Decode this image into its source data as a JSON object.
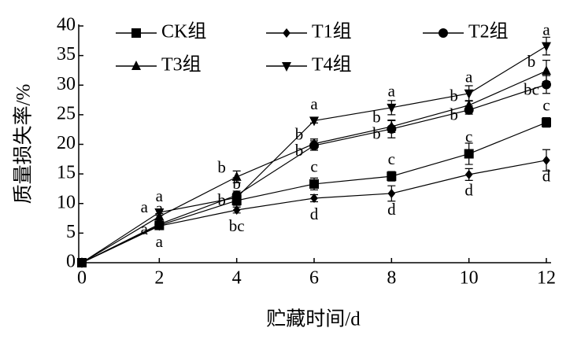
{
  "chart_data": {
    "type": "line",
    "x_label": "贮藏时间/d",
    "y_label": "质量损失率/%",
    "x": [
      0,
      2,
      4,
      6,
      8,
      10,
      12
    ],
    "xlim": [
      0,
      12
    ],
    "xticks": [
      0,
      2,
      4,
      6,
      8,
      10,
      12
    ],
    "ylim": [
      0,
      40
    ],
    "yticks": [
      0,
      5,
      10,
      15,
      20,
      25,
      30,
      35,
      40
    ],
    "color": "#000000",
    "series": [
      {
        "name": "CK组",
        "marker": "square",
        "values": [
          0,
          6.3,
          10.5,
          13.3,
          14.6,
          18.4,
          23.7
        ],
        "errors": [
          0,
          0.5,
          0.8,
          1.0,
          0.8,
          1.8,
          0.8
        ],
        "labels": [
          null,
          "a",
          "b",
          "c",
          "c",
          "c",
          "c"
        ]
      },
      {
        "name": "T1组",
        "marker": "diamond",
        "values": [
          0,
          6.2,
          8.9,
          10.9,
          11.7,
          14.9,
          17.3
        ],
        "errors": [
          0,
          0.4,
          0.5,
          0.6,
          1.3,
          1.0,
          1.8
        ],
        "labels": [
          null,
          "a",
          "bc",
          "d",
          "d",
          "d",
          "d"
        ]
      },
      {
        "name": "T2组",
        "marker": "circle",
        "values": [
          0,
          6.5,
          11.4,
          19.8,
          22.6,
          25.8,
          30.1
        ],
        "errors": [
          0,
          0.5,
          0.7,
          0.8,
          1.5,
          0.7,
          1.5
        ],
        "labels": [
          null,
          "a",
          "b",
          "b",
          "b",
          "b",
          "bc"
        ]
      },
      {
        "name": "T3组",
        "marker": "triangle-up",
        "values": [
          0,
          7.8,
          14.5,
          20.1,
          23.0,
          26.6,
          32.4
        ],
        "errors": [
          0,
          0.5,
          1.0,
          0.8,
          1.0,
          0.8,
          1.8
        ],
        "labels": [
          null,
          "a",
          "b",
          "b",
          "b",
          "b",
          "b"
        ]
      },
      {
        "name": "T4组",
        "marker": "triangle-down",
        "values": [
          0,
          8.5,
          11.0,
          24.0,
          26.2,
          28.6,
          36.6
        ],
        "errors": [
          0,
          0.5,
          0.8,
          0.4,
          1.2,
          1.3,
          1.5
        ],
        "labels": [
          null,
          "a",
          null,
          "a",
          "a",
          "a",
          "a"
        ]
      }
    ]
  }
}
